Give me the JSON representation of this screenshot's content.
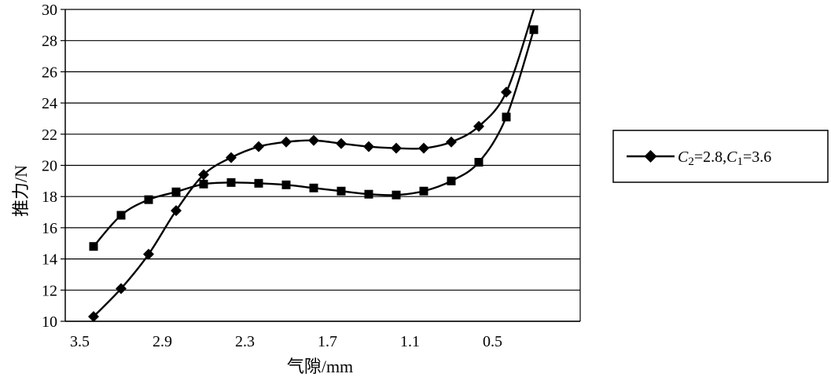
{
  "chart_data": {
    "type": "line",
    "xlabel": "气隙/mm",
    "ylabel": "推力/N",
    "xlim": [
      3.5,
      -0.7
    ],
    "ylim": [
      10,
      30
    ],
    "xticks": [
      3.5,
      2.9,
      2.3,
      1.7,
      1.1,
      0.5
    ],
    "xtick_labels": [
      "3.5",
      "2.9",
      "2.3",
      "1.7",
      "1.1",
      "0.5"
    ],
    "yticks": [
      10,
      12,
      14,
      16,
      18,
      20,
      22,
      24,
      26,
      28,
      30
    ],
    "ytick_labels": [
      "10",
      "12",
      "14",
      "16",
      "18",
      "20",
      "22",
      "24",
      "26",
      "28",
      "30"
    ],
    "grid": "horizontal",
    "legend_position": "right",
    "series": [
      {
        "legend_label": {
          "c2_symbol": "C",
          "c2_sub": "2",
          "c2_value": "=2.8,",
          "c1_symbol": "C",
          "c1_sub": "1",
          "c1_value": "=3.6"
        },
        "marker": "diamond",
        "color": "#000000",
        "x": [
          3.4,
          3.2,
          3.0,
          2.8,
          2.6,
          2.4,
          2.2,
          2.0,
          1.8,
          1.6,
          1.4,
          1.2,
          1.0,
          0.8,
          0.6,
          0.4,
          0.2
        ],
        "y": [
          10.3,
          12.1,
          14.3,
          17.1,
          19.4,
          20.5,
          21.2,
          21.5,
          21.6,
          21.4,
          21.2,
          21.1,
          21.1,
          21.5,
          22.5,
          24.7,
          30.0
        ]
      },
      {
        "marker": "square",
        "color": "#000000",
        "x": [
          3.4,
          3.2,
          3.0,
          2.8,
          2.6,
          2.4,
          2.2,
          2.0,
          1.8,
          1.6,
          1.4,
          1.2,
          1.0,
          0.8,
          0.6,
          0.4,
          0.2
        ],
        "y": [
          14.8,
          16.8,
          17.8,
          18.3,
          18.8,
          18.9,
          18.85,
          18.75,
          18.55,
          18.35,
          18.15,
          18.1,
          18.35,
          19.0,
          20.2,
          23.1,
          28.7
        ]
      }
    ]
  }
}
